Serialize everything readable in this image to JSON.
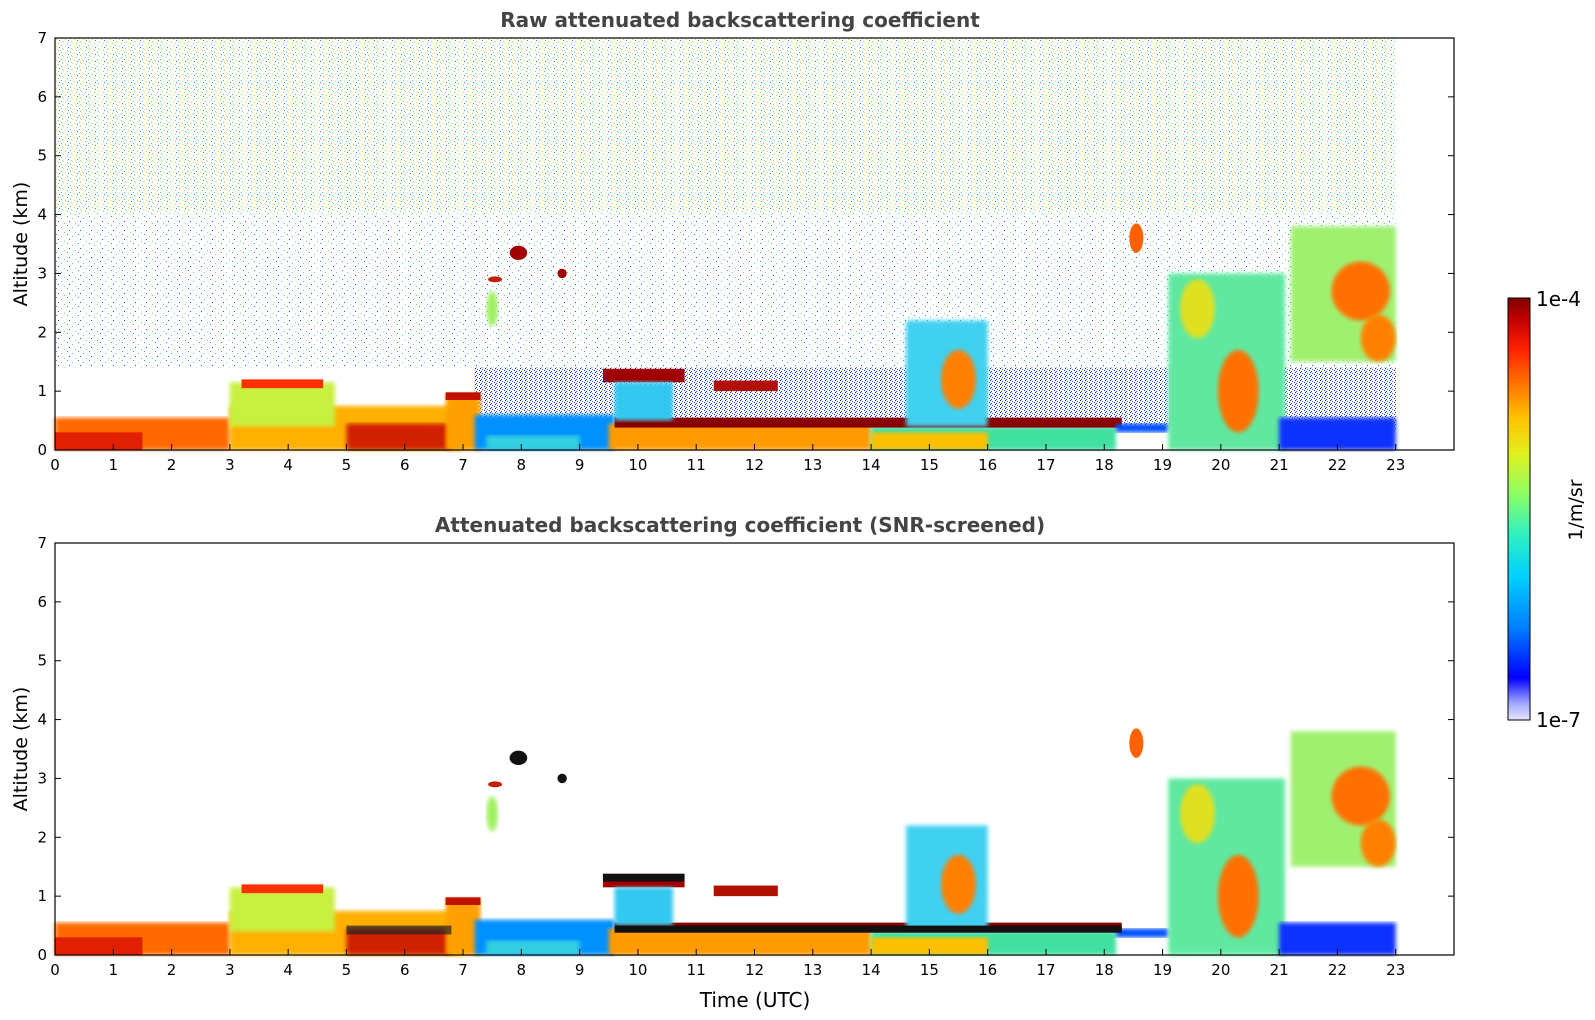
{
  "chart_data": [
    {
      "type": "heatmap",
      "title": "Raw attenuated backscattering coefficient",
      "xlabel": "",
      "ylabel": "Altitude (km)",
      "xlim": [
        0,
        24
      ],
      "ylim": [
        0,
        7
      ],
      "x_ticks": [
        "0",
        "1",
        "2",
        "3",
        "4",
        "5",
        "6",
        "7",
        "8",
        "9",
        "10",
        "11",
        "12",
        "13",
        "14",
        "15",
        "16",
        "17",
        "18",
        "19",
        "20",
        "21",
        "22",
        "23"
      ],
      "y_ticks": [
        "0",
        "1",
        "2",
        "3",
        "4",
        "5",
        "6",
        "7"
      ],
      "data_extent_hours": [
        0,
        23
      ],
      "features": [
        {
          "kind": "boundary_layer",
          "t": [
            0,
            7
          ],
          "top_km": 0.6,
          "level": "high"
        },
        {
          "kind": "cloud_layer",
          "t": [
            3,
            5
          ],
          "alt_km": [
            0.8,
            1.2
          ],
          "level": "high"
        },
        {
          "kind": "aerosol_layer",
          "t": [
            6.7,
            7.3
          ],
          "alt_km": [
            0,
            1.0
          ],
          "level": "high"
        },
        {
          "kind": "cloud_layer",
          "t": [
            9.4,
            10.8
          ],
          "alt_km": [
            1.1,
            1.4
          ],
          "level": "very high"
        },
        {
          "kind": "cloud_layer",
          "t": [
            11.3,
            12.4
          ],
          "alt_km": [
            1.0,
            1.2
          ],
          "level": "very high"
        },
        {
          "kind": "cloud_layer",
          "t": [
            9.6,
            18.3
          ],
          "alt_km": [
            0.3,
            0.6
          ],
          "level": "very high"
        },
        {
          "kind": "cloud_patch",
          "t": [
            7.8,
            8.1
          ],
          "alt_km": [
            3.2,
            3.5
          ],
          "level": "very high"
        },
        {
          "kind": "cloud_patch",
          "t": [
            8.6,
            8.8
          ],
          "alt_km": [
            2.9,
            3.1
          ],
          "level": "very high"
        },
        {
          "kind": "cloud_patch",
          "t": [
            18.4,
            18.7
          ],
          "alt_km": [
            3.3,
            3.8
          ],
          "level": "high"
        },
        {
          "kind": "convective_cloud",
          "t": [
            14.8,
            16.0
          ],
          "alt_km": [
            0.3,
            2.4
          ],
          "level": "medium"
        },
        {
          "kind": "convective_cloud",
          "t": [
            19.1,
            21.1
          ],
          "alt_km": [
            0,
            3.4
          ],
          "level": "medium"
        },
        {
          "kind": "mid_level_cloud",
          "t": [
            21.2,
            23.0
          ],
          "alt_km": [
            1.5,
            3.9
          ],
          "level": "medium-high"
        }
      ]
    },
    {
      "type": "heatmap",
      "title": "Attenuated backscattering coefficient (SNR-screened)",
      "xlabel": "Time (UTC)",
      "ylabel": "Altitude (km)",
      "xlim": [
        0,
        24
      ],
      "ylim": [
        0,
        7
      ],
      "x_ticks": [
        "0",
        "1",
        "2",
        "3",
        "4",
        "5",
        "6",
        "7",
        "8",
        "9",
        "10",
        "11",
        "12",
        "13",
        "14",
        "15",
        "16",
        "17",
        "18",
        "19",
        "20",
        "21",
        "22",
        "23"
      ],
      "y_ticks": [
        "0",
        "1",
        "2",
        "3",
        "4",
        "5",
        "6",
        "7"
      ],
      "data_extent_hours": [
        0,
        23
      ],
      "screened": true
    }
  ],
  "colorbar": {
    "label": "1/m/sr",
    "min_label": "1e-7",
    "max_label": "1e-4",
    "scale": "log",
    "colors": [
      "#e8e8ff",
      "#9fa6ff",
      "#0000ff",
      "#0080ff",
      "#00d0ff",
      "#30f0c0",
      "#90ff60",
      "#e0f020",
      "#ffc000",
      "#ff7000",
      "#ff2000",
      "#c00000",
      "#800000"
    ]
  }
}
